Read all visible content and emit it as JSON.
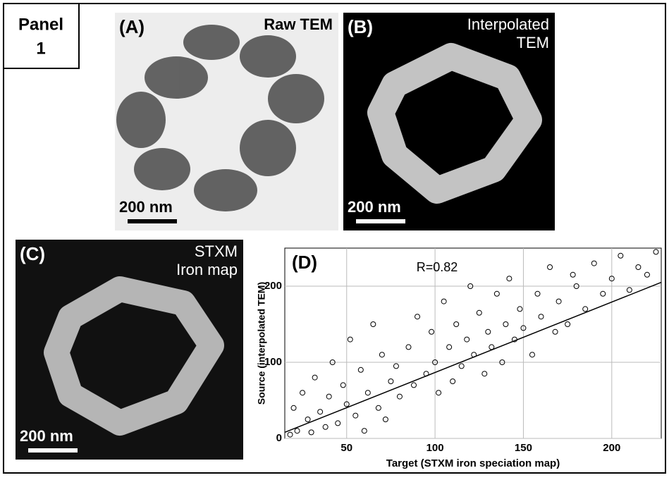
{
  "panel_title": [
    "Panel",
    "1"
  ],
  "panels": [
    {
      "label": "(A)",
      "title": [
        "Raw TEM"
      ],
      "scale_bar": "200 nm"
    },
    {
      "label": "(B)",
      "title": [
        "Interpolated",
        "TEM"
      ],
      "scale_bar": "200 nm"
    },
    {
      "label": "(C)",
      "title": [
        "STXM",
        "Iron map"
      ],
      "scale_bar": "200 nm"
    }
  ],
  "chart_data": {
    "type": "scatter",
    "label": "(D)",
    "annotation": "R=0.82",
    "x_label": "Target (STXM iron speciation map)",
    "y_label": "Source (interpolated TEM)",
    "xlim": [
      15,
      228
    ],
    "ylim": [
      0,
      250
    ],
    "xticks": [
      50,
      100,
      150,
      200
    ],
    "yticks": [
      0,
      100,
      200
    ],
    "grid": true,
    "color": "#000000",
    "x": [
      18,
      20,
      22,
      25,
      28,
      30,
      32,
      35,
      38,
      40,
      42,
      45,
      48,
      50,
      52,
      55,
      58,
      60,
      62,
      65,
      68,
      70,
      72,
      75,
      78,
      80,
      85,
      88,
      90,
      95,
      98,
      100,
      102,
      105,
      108,
      110,
      112,
      115,
      118,
      120,
      122,
      125,
      128,
      130,
      132,
      135,
      138,
      140,
      142,
      145,
      148,
      150,
      155,
      158,
      160,
      165,
      168,
      170,
      175,
      178,
      180,
      185,
      190,
      195,
      200,
      205,
      210,
      215,
      220,
      225
    ],
    "y": [
      5,
      40,
      10,
      60,
      25,
      8,
      80,
      35,
      15,
      55,
      100,
      20,
      70,
      45,
      130,
      30,
      90,
      10,
      60,
      150,
      40,
      110,
      25,
      75,
      95,
      55,
      120,
      70,
      160,
      85,
      140,
      100,
      60,
      180,
      120,
      75,
      150,
      95,
      130,
      200,
      110,
      165,
      85,
      140,
      120,
      190,
      100,
      150,
      210,
      130,
      170,
      145,
      110,
      190,
      160,
      225,
      140,
      180,
      150,
      215,
      200,
      170,
      230,
      190,
      210,
      240,
      195,
      225,
      215,
      245
    ],
    "fit_line": {
      "x": [
        15,
        228
      ],
      "y": [
        8,
        205
      ]
    }
  }
}
